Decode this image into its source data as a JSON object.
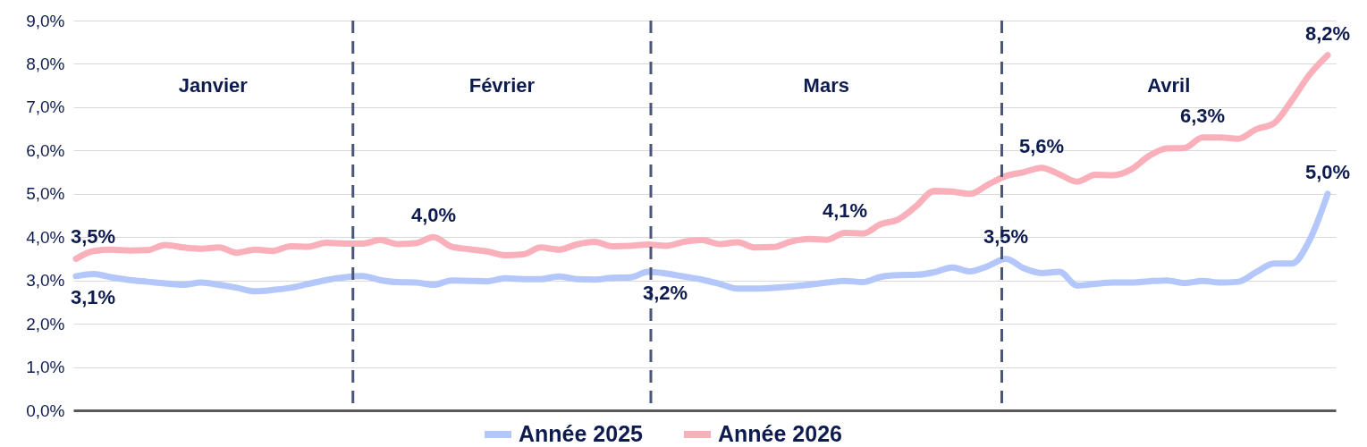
{
  "chart_data": {
    "type": "line",
    "categories": [
      null,
      null,
      null,
      null,
      null,
      null,
      null,
      null,
      null,
      null,
      null,
      null,
      null,
      null,
      null,
      null,
      null,
      null,
      null,
      null,
      null,
      null,
      null,
      null,
      null,
      null,
      null,
      null,
      null,
      null,
      null,
      null,
      null,
      null,
      null,
      null,
      null,
      null,
      null,
      null,
      null,
      null,
      null,
      null,
      null,
      null,
      null,
      null,
      null,
      null,
      null,
      null,
      null,
      null,
      null,
      null,
      null,
      null,
      null,
      null,
      null,
      null,
      null,
      null,
      null,
      null,
      null,
      null,
      null,
      null,
      null
    ],
    "ylim": [
      0,
      9
    ],
    "yticks": [
      {
        "value": 0,
        "label": "0,0%"
      },
      {
        "value": 1,
        "label": "1,0%"
      },
      {
        "value": 2,
        "label": "2,0%"
      },
      {
        "value": 3,
        "label": "3,0%"
      },
      {
        "value": 4,
        "label": "4,0%"
      },
      {
        "value": 5,
        "label": "5,0%"
      },
      {
        "value": 6,
        "label": "6,0%"
      },
      {
        "value": 7,
        "label": "7,0%"
      },
      {
        "value": 8,
        "label": "8,0%"
      },
      {
        "value": 9,
        "label": "9,0%"
      }
    ],
    "grid": "y",
    "legend": "bottom",
    "series": [
      {
        "name": "Année 2025",
        "color": "#b4c7fa",
        "values": [
          3.1,
          3.15,
          3.07,
          3.01,
          2.97,
          2.93,
          2.9,
          2.95,
          2.9,
          2.83,
          2.75,
          2.78,
          2.83,
          2.92,
          3.01,
          3.07,
          3.1,
          3.01,
          2.96,
          2.95,
          2.9,
          3.0,
          2.99,
          2.98,
          3.05,
          3.03,
          3.03,
          3.09,
          3.03,
          3.02,
          3.06,
          3.07,
          3.2,
          3.16,
          3.09,
          3.02,
          2.92,
          2.81,
          2.81,
          2.83,
          2.86,
          2.9,
          2.95,
          2.99,
          2.96,
          3.08,
          3.12,
          3.13,
          3.19,
          3.3,
          3.21,
          3.33,
          3.5,
          3.28,
          3.17,
          3.2,
          2.88,
          2.92,
          2.95,
          2.95,
          2.98,
          3.0,
          2.94,
          2.99,
          2.95,
          2.97,
          3.19,
          3.39,
          3.39,
          3.94,
          5.0
        ],
        "value_labels": [
          "3,1%",
          null,
          null,
          null,
          null,
          null,
          null,
          null,
          null,
          null,
          null,
          null,
          null,
          null,
          null,
          null,
          null,
          null,
          null,
          null,
          null,
          null,
          null,
          null,
          null,
          null,
          null,
          null,
          null,
          null,
          null,
          null,
          "3,2%",
          null,
          null,
          null,
          null,
          null,
          null,
          null,
          null,
          null,
          null,
          null,
          null,
          null,
          null,
          null,
          null,
          null,
          null,
          null,
          "3,5%",
          null,
          null,
          null,
          null,
          null,
          null,
          null,
          null,
          null,
          null,
          null,
          null,
          null,
          null,
          null,
          null,
          null,
          "5,0%"
        ]
      },
      {
        "name": "Année 2026",
        "color": "#f9b0ba",
        "values": [
          3.5,
          3.68,
          3.71,
          3.69,
          3.7,
          3.82,
          3.76,
          3.73,
          3.76,
          3.64,
          3.71,
          3.68,
          3.79,
          3.78,
          3.87,
          3.85,
          3.85,
          3.93,
          3.84,
          3.86,
          4.0,
          3.78,
          3.72,
          3.67,
          3.58,
          3.6,
          3.76,
          3.71,
          3.83,
          3.89,
          3.79,
          3.8,
          3.83,
          3.8,
          3.89,
          3.93,
          3.84,
          3.88,
          3.76,
          3.77,
          3.9,
          3.96,
          3.94,
          4.1,
          4.08,
          4.3,
          4.41,
          4.72,
          5.07,
          5.05,
          5.0,
          5.21,
          5.41,
          5.5,
          5.6,
          5.45,
          5.28,
          5.44,
          5.43,
          5.56,
          5.87,
          6.05,
          6.06,
          6.3,
          6.3,
          6.27,
          6.49,
          6.63,
          7.16,
          7.76,
          8.2
        ],
        "value_labels": [
          "3,5%",
          null,
          null,
          null,
          null,
          null,
          null,
          null,
          null,
          null,
          null,
          null,
          null,
          null,
          null,
          null,
          null,
          null,
          null,
          null,
          "4,0%",
          null,
          null,
          null,
          null,
          null,
          null,
          null,
          null,
          null,
          null,
          null,
          null,
          null,
          null,
          null,
          null,
          null,
          null,
          null,
          null,
          null,
          null,
          "4,1%",
          null,
          null,
          null,
          null,
          null,
          null,
          null,
          null,
          null,
          null,
          "5,6%",
          null,
          null,
          null,
          null,
          null,
          null,
          null,
          null,
          "6,3%",
          null,
          null,
          null,
          null,
          null,
          null,
          "8,2%"
        ]
      }
    ],
    "annotations": [
      "Janvier",
      "Février",
      "Mars",
      "Avril"
    ]
  }
}
